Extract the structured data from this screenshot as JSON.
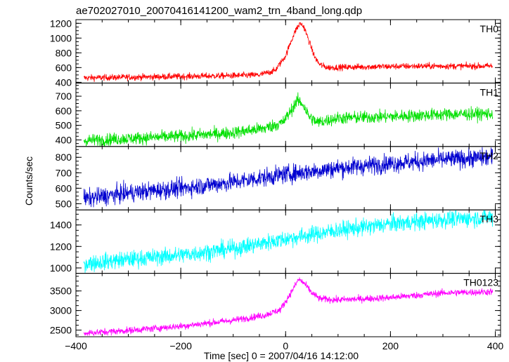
{
  "chart_data": {
    "type": "line",
    "title": "ae702027010_20070416141200_wam2_trn_4band_long.qdp",
    "xlabel": "Time [sec] 0 = 2007/04/16 14:12:00",
    "ylabel": "Counts/sec",
    "xlim": [
      -400,
      410
    ],
    "xticks": [
      -400,
      -200,
      0,
      200,
      400
    ],
    "xtick_labels": [
      "−400",
      "−200",
      "0",
      "200",
      "400"
    ],
    "x_range": [
      -385,
      395
    ],
    "grid": false,
    "panels": [
      {
        "name": "TH0",
        "color": "#ff0000",
        "ylim": [
          390,
          1250
        ],
        "yticks": [
          400,
          600,
          800,
          1000,
          1200
        ],
        "ytick_labels": [
          "400",
          "600",
          "800",
          "1000",
          "1200"
        ],
        "noise": 22,
        "profile": [
          [
            -385,
            460
          ],
          [
            -200,
            480
          ],
          [
            -100,
            490
          ],
          [
            -50,
            500
          ],
          [
            -20,
            560
          ],
          [
            0,
            760
          ],
          [
            10,
            950
          ],
          [
            20,
            1120
          ],
          [
            28,
            1200
          ],
          [
            35,
            1150
          ],
          [
            45,
            950
          ],
          [
            55,
            750
          ],
          [
            65,
            640
          ],
          [
            80,
            600
          ],
          [
            150,
            610
          ],
          [
            250,
            620
          ],
          [
            395,
            620
          ]
        ]
      },
      {
        "name": "TH1",
        "color": "#00e000",
        "ylim": [
          355,
          790
        ],
        "yticks": [
          400,
          500,
          600,
          700
        ],
        "ytick_labels": [
          "400",
          "500",
          "600",
          "700"
        ],
        "noise": 22,
        "profile": [
          [
            -385,
            395
          ],
          [
            -300,
            410
          ],
          [
            -200,
            425
          ],
          [
            -100,
            450
          ],
          [
            -40,
            480
          ],
          [
            -5,
            520
          ],
          [
            10,
            600
          ],
          [
            22,
            670
          ],
          [
            32,
            650
          ],
          [
            45,
            560
          ],
          [
            60,
            520
          ],
          [
            100,
            550
          ],
          [
            200,
            560
          ],
          [
            300,
            575
          ],
          [
            395,
            580
          ]
        ]
      },
      {
        "name": "TH2",
        "color": "#0000d0",
        "ylim": [
          460,
          870
        ],
        "yticks": [
          500,
          600,
          700,
          800
        ],
        "ytick_labels": [
          "500",
          "600",
          "700",
          "800"
        ],
        "noise": 30,
        "profile": [
          [
            -385,
            530
          ],
          [
            -300,
            570
          ],
          [
            -200,
            600
          ],
          [
            -100,
            640
          ],
          [
            0,
            690
          ],
          [
            100,
            730
          ],
          [
            200,
            760
          ],
          [
            300,
            785
          ],
          [
            395,
            800
          ]
        ]
      },
      {
        "name": "TH3",
        "color": "#00ffff",
        "ylim": [
          950,
          1540
        ],
        "yticks": [
          1000,
          1200,
          1400
        ],
        "ytick_labels": [
          "1000",
          "1200",
          "1400"
        ],
        "noise": 40,
        "profile": [
          [
            -385,
            1040
          ],
          [
            -300,
            1080
          ],
          [
            -200,
            1120
          ],
          [
            -100,
            1180
          ],
          [
            0,
            1270
          ],
          [
            100,
            1350
          ],
          [
            200,
            1410
          ],
          [
            300,
            1450
          ],
          [
            395,
            1470
          ]
        ]
      },
      {
        "name": "TH0123",
        "color": "#ff00ff",
        "ylim": [
          2330,
          3950
        ],
        "yticks": [
          2500,
          3000,
          3500
        ],
        "ytick_labels": [
          "2500",
          "3000",
          "3500"
        ],
        "noise": 45,
        "profile": [
          [
            -385,
            2420
          ],
          [
            -300,
            2490
          ],
          [
            -200,
            2600
          ],
          [
            -100,
            2750
          ],
          [
            -40,
            2880
          ],
          [
            -10,
            3020
          ],
          [
            10,
            3450
          ],
          [
            25,
            3800
          ],
          [
            35,
            3700
          ],
          [
            50,
            3450
          ],
          [
            65,
            3300
          ],
          [
            100,
            3270
          ],
          [
            200,
            3330
          ],
          [
            300,
            3450
          ],
          [
            395,
            3480
          ]
        ]
      }
    ]
  }
}
